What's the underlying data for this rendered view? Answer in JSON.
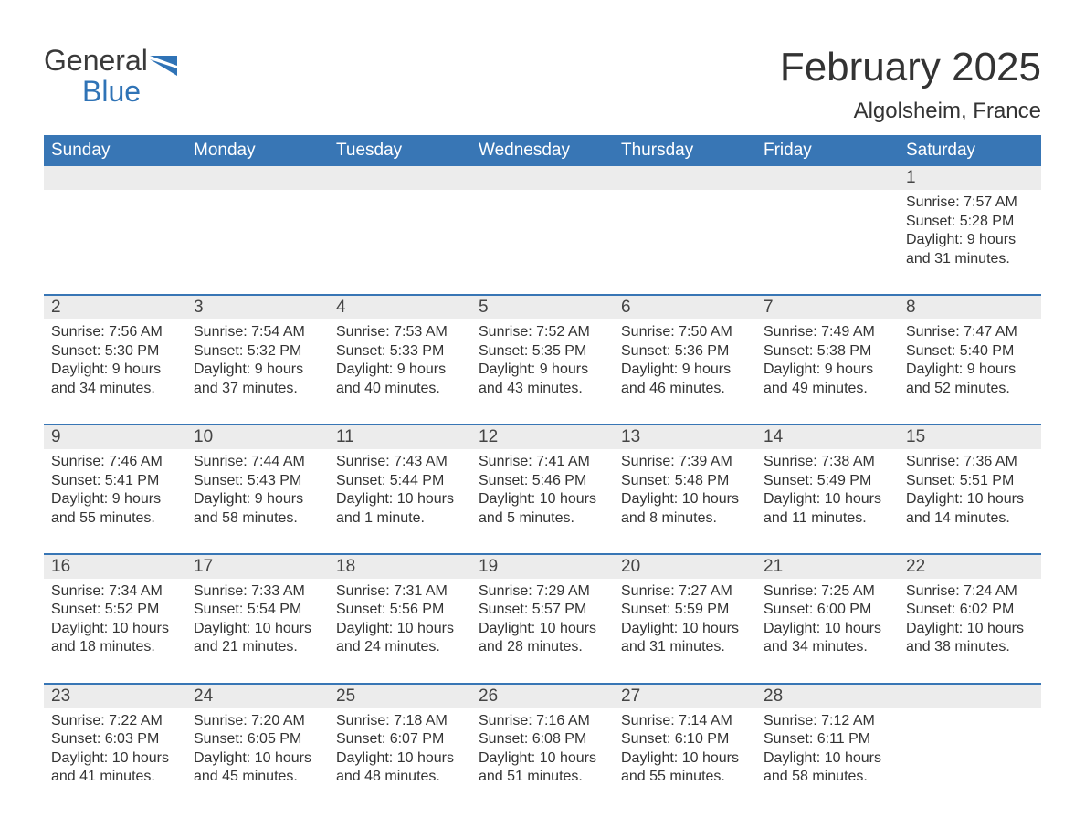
{
  "logo": {
    "line1": "General",
    "line2": "Blue",
    "text_color": "#3a3a3a",
    "blue_color": "#2f73b6",
    "shape_color": "#2f73b6"
  },
  "header": {
    "month_title": "February 2025",
    "location": "Algolsheim, France",
    "title_fontsize": 44,
    "location_fontsize": 24,
    "title_color": "#333333"
  },
  "calendar": {
    "type": "table",
    "header_bg": "#3876b5",
    "header_text_color": "#ffffff",
    "daynum_bg": "#ececec",
    "week_divider_color": "#3876b5",
    "text_color": "#333333",
    "body_fontsize": 16,
    "daynum_fontsize": 19,
    "header_fontsize": 19,
    "day_names": [
      "Sunday",
      "Monday",
      "Tuesday",
      "Wednesday",
      "Thursday",
      "Friday",
      "Saturday"
    ],
    "weeks": [
      [
        null,
        null,
        null,
        null,
        null,
        null,
        {
          "n": "1",
          "sunrise": "Sunrise: 7:57 AM",
          "sunset": "Sunset: 5:28 PM",
          "daylight": "Daylight: 9 hours and 31 minutes."
        }
      ],
      [
        {
          "n": "2",
          "sunrise": "Sunrise: 7:56 AM",
          "sunset": "Sunset: 5:30 PM",
          "daylight": "Daylight: 9 hours and 34 minutes."
        },
        {
          "n": "3",
          "sunrise": "Sunrise: 7:54 AM",
          "sunset": "Sunset: 5:32 PM",
          "daylight": "Daylight: 9 hours and 37 minutes."
        },
        {
          "n": "4",
          "sunrise": "Sunrise: 7:53 AM",
          "sunset": "Sunset: 5:33 PM",
          "daylight": "Daylight: 9 hours and 40 minutes."
        },
        {
          "n": "5",
          "sunrise": "Sunrise: 7:52 AM",
          "sunset": "Sunset: 5:35 PM",
          "daylight": "Daylight: 9 hours and 43 minutes."
        },
        {
          "n": "6",
          "sunrise": "Sunrise: 7:50 AM",
          "sunset": "Sunset: 5:36 PM",
          "daylight": "Daylight: 9 hours and 46 minutes."
        },
        {
          "n": "7",
          "sunrise": "Sunrise: 7:49 AM",
          "sunset": "Sunset: 5:38 PM",
          "daylight": "Daylight: 9 hours and 49 minutes."
        },
        {
          "n": "8",
          "sunrise": "Sunrise: 7:47 AM",
          "sunset": "Sunset: 5:40 PM",
          "daylight": "Daylight: 9 hours and 52 minutes."
        }
      ],
      [
        {
          "n": "9",
          "sunrise": "Sunrise: 7:46 AM",
          "sunset": "Sunset: 5:41 PM",
          "daylight": "Daylight: 9 hours and 55 minutes."
        },
        {
          "n": "10",
          "sunrise": "Sunrise: 7:44 AM",
          "sunset": "Sunset: 5:43 PM",
          "daylight": "Daylight: 9 hours and 58 minutes."
        },
        {
          "n": "11",
          "sunrise": "Sunrise: 7:43 AM",
          "sunset": "Sunset: 5:44 PM",
          "daylight": "Daylight: 10 hours and 1 minute."
        },
        {
          "n": "12",
          "sunrise": "Sunrise: 7:41 AM",
          "sunset": "Sunset: 5:46 PM",
          "daylight": "Daylight: 10 hours and 5 minutes."
        },
        {
          "n": "13",
          "sunrise": "Sunrise: 7:39 AM",
          "sunset": "Sunset: 5:48 PM",
          "daylight": "Daylight: 10 hours and 8 minutes."
        },
        {
          "n": "14",
          "sunrise": "Sunrise: 7:38 AM",
          "sunset": "Sunset: 5:49 PM",
          "daylight": "Daylight: 10 hours and 11 minutes."
        },
        {
          "n": "15",
          "sunrise": "Sunrise: 7:36 AM",
          "sunset": "Sunset: 5:51 PM",
          "daylight": "Daylight: 10 hours and 14 minutes."
        }
      ],
      [
        {
          "n": "16",
          "sunrise": "Sunrise: 7:34 AM",
          "sunset": "Sunset: 5:52 PM",
          "daylight": "Daylight: 10 hours and 18 minutes."
        },
        {
          "n": "17",
          "sunrise": "Sunrise: 7:33 AM",
          "sunset": "Sunset: 5:54 PM",
          "daylight": "Daylight: 10 hours and 21 minutes."
        },
        {
          "n": "18",
          "sunrise": "Sunrise: 7:31 AM",
          "sunset": "Sunset: 5:56 PM",
          "daylight": "Daylight: 10 hours and 24 minutes."
        },
        {
          "n": "19",
          "sunrise": "Sunrise: 7:29 AM",
          "sunset": "Sunset: 5:57 PM",
          "daylight": "Daylight: 10 hours and 28 minutes."
        },
        {
          "n": "20",
          "sunrise": "Sunrise: 7:27 AM",
          "sunset": "Sunset: 5:59 PM",
          "daylight": "Daylight: 10 hours and 31 minutes."
        },
        {
          "n": "21",
          "sunrise": "Sunrise: 7:25 AM",
          "sunset": "Sunset: 6:00 PM",
          "daylight": "Daylight: 10 hours and 34 minutes."
        },
        {
          "n": "22",
          "sunrise": "Sunrise: 7:24 AM",
          "sunset": "Sunset: 6:02 PM",
          "daylight": "Daylight: 10 hours and 38 minutes."
        }
      ],
      [
        {
          "n": "23",
          "sunrise": "Sunrise: 7:22 AM",
          "sunset": "Sunset: 6:03 PM",
          "daylight": "Daylight: 10 hours and 41 minutes."
        },
        {
          "n": "24",
          "sunrise": "Sunrise: 7:20 AM",
          "sunset": "Sunset: 6:05 PM",
          "daylight": "Daylight: 10 hours and 45 minutes."
        },
        {
          "n": "25",
          "sunrise": "Sunrise: 7:18 AM",
          "sunset": "Sunset: 6:07 PM",
          "daylight": "Daylight: 10 hours and 48 minutes."
        },
        {
          "n": "26",
          "sunrise": "Sunrise: 7:16 AM",
          "sunset": "Sunset: 6:08 PM",
          "daylight": "Daylight: 10 hours and 51 minutes."
        },
        {
          "n": "27",
          "sunrise": "Sunrise: 7:14 AM",
          "sunset": "Sunset: 6:10 PM",
          "daylight": "Daylight: 10 hours and 55 minutes."
        },
        {
          "n": "28",
          "sunrise": "Sunrise: 7:12 AM",
          "sunset": "Sunset: 6:11 PM",
          "daylight": "Daylight: 10 hours and 58 minutes."
        },
        null
      ]
    ]
  }
}
